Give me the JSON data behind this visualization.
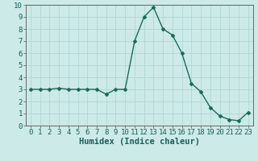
{
  "x": [
    0,
    1,
    2,
    3,
    4,
    5,
    6,
    7,
    8,
    9,
    10,
    11,
    12,
    13,
    14,
    15,
    16,
    17,
    18,
    19,
    20,
    21,
    22,
    23
  ],
  "y": [
    3.0,
    3.0,
    3.0,
    3.1,
    3.0,
    3.0,
    3.0,
    3.0,
    2.6,
    3.0,
    3.0,
    7.0,
    9.0,
    9.8,
    8.0,
    7.5,
    6.0,
    3.5,
    2.8,
    1.5,
    0.8,
    0.5,
    0.4,
    1.1
  ],
  "line_color": "#1a6b5a",
  "marker": "D",
  "marker_size": 2.0,
  "bg_color": "#cceae7",
  "grid_color": "#b0d8d4",
  "xlabel": "Humidex (Indice chaleur)",
  "xlabel_fontsize": 7.5,
  "xlim": [
    -0.5,
    23.5
  ],
  "ylim": [
    0,
    10
  ],
  "yticks": [
    0,
    1,
    2,
    3,
    4,
    5,
    6,
    7,
    8,
    9,
    10
  ],
  "xticks": [
    0,
    1,
    2,
    3,
    4,
    5,
    6,
    7,
    8,
    9,
    10,
    11,
    12,
    13,
    14,
    15,
    16,
    17,
    18,
    19,
    20,
    21,
    22,
    23
  ],
  "tick_fontsize": 6.5,
  "line_width": 1.0
}
